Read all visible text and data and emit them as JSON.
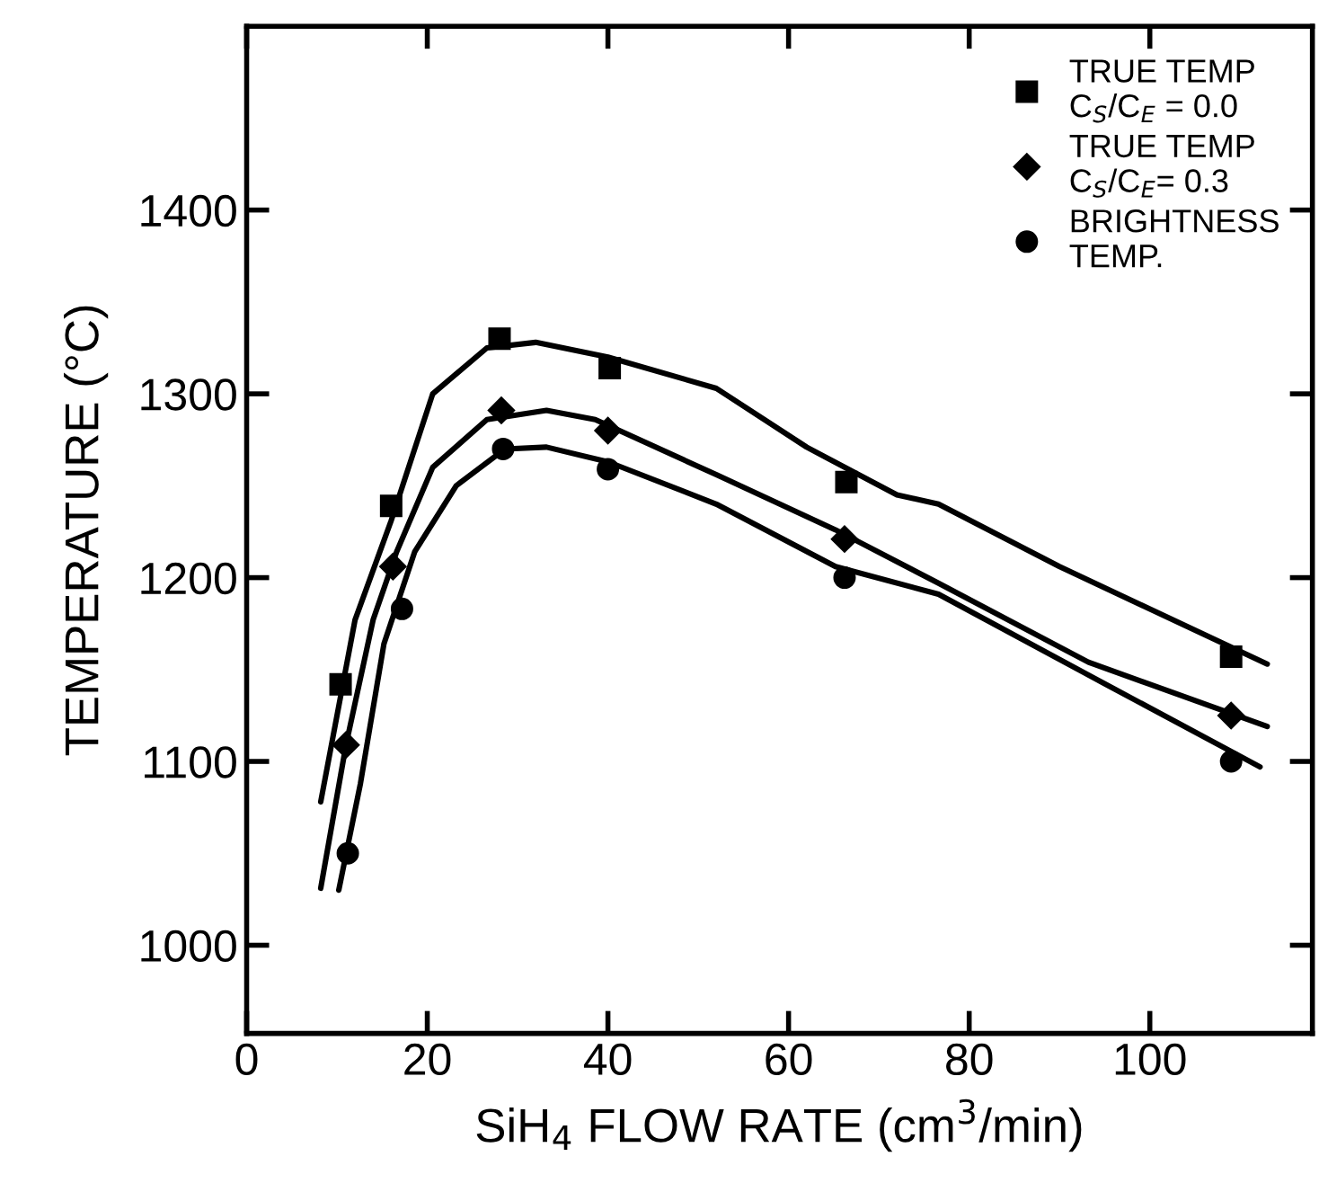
{
  "chart_data": {
    "type": "scatter",
    "xlabel": "SiH$_{4}$ FLOW RATE (cm$^{3}$/min)",
    "ylabel": "TEMPERATURE (°C)",
    "xlim": [
      0,
      118
    ],
    "ylim": [
      952,
      1500
    ],
    "xticks": [
      0,
      20,
      40,
      60,
      80,
      100
    ],
    "yticks": [
      1000,
      1100,
      1200,
      1300,
      1400
    ],
    "grid": false,
    "legend": "top right",
    "series": [
      {
        "name": "TRUE TEMP\nC$_{S}$/C$_{E}$ = 0.0",
        "color": "#000000",
        "marker": "square",
        "x": [
          10.4,
          16,
          28,
          40.2,
          66.4,
          109
        ],
        "values": [
          1142,
          1239,
          1330,
          1314,
          1252,
          1157
        ]
      },
      {
        "name": "TRUE TEMP\nC$_{S}$/C$_{E}$= 0.3",
        "color": "#000000",
        "marker": "diamond",
        "x": [
          11,
          16.2,
          28.2,
          40,
          66.2,
          109
        ],
        "values": [
          1109,
          1206,
          1291,
          1280,
          1221,
          1125
        ]
      },
      {
        "name": "BRIGHTNESS\nTEMP.",
        "color": "#000000",
        "marker": "circle",
        "x": [
          11.2,
          17.2,
          28.4,
          40,
          66.2,
          109
        ],
        "values": [
          1050,
          1183,
          1270,
          1259,
          1200,
          1100
        ]
      },
      {
        "type": "line",
        "color": "#000000",
        "line_style": "solid",
        "x": [
          8.2,
          12,
          16,
          20.6,
          26.6,
          32,
          40,
          52,
          62,
          72,
          76.6,
          90,
          113
        ],
        "values": [
          1078,
          1177,
          1231,
          1300,
          1325,
          1328,
          1320,
          1303,
          1271,
          1245,
          1240,
          1206,
          1153
        ]
      },
      {
        "type": "line",
        "color": "#000000",
        "line_style": "solid",
        "x": [
          8.2,
          11,
          14,
          16.6,
          20.6,
          26.6,
          33.2,
          38.6,
          52,
          65.2,
          76.6,
          93.2,
          113
        ],
        "values": [
          1031,
          1109,
          1177,
          1214,
          1260,
          1286,
          1291,
          1286,
          1256,
          1226,
          1197,
          1154,
          1119
        ]
      },
      {
        "type": "line",
        "color": "#000000",
        "line_style": "solid",
        "x": [
          10.2,
          12.6,
          15.2,
          18.6,
          23.2,
          28.6,
          33.2,
          40,
          52,
          65.2,
          76.6,
          93.2,
          112.2
        ],
        "values": [
          1030,
          1088,
          1164,
          1214,
          1250,
          1270,
          1271,
          1263,
          1240,
          1206,
          1191,
          1147,
          1097
        ]
      }
    ]
  }
}
